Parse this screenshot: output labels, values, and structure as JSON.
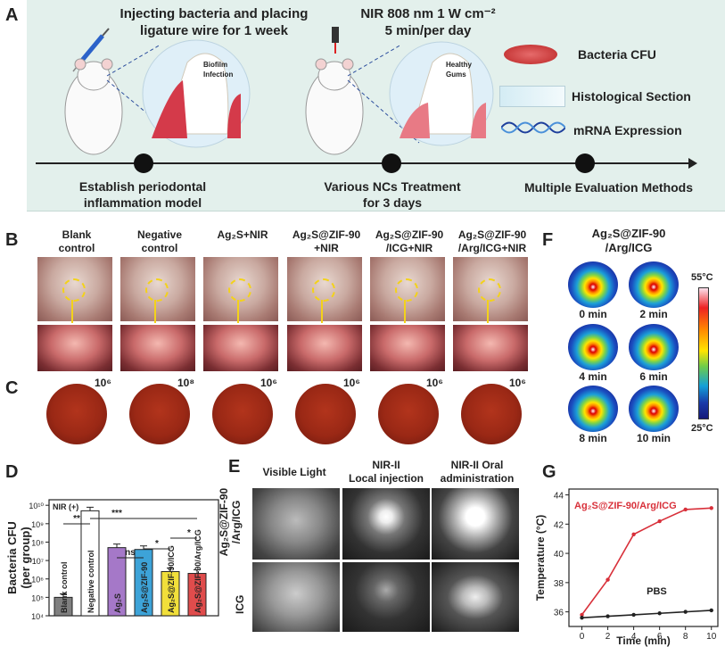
{
  "panelA": {
    "label": "A",
    "step1_title1": "Injecting bacteria and placing",
    "step1_title2": "ligature wire for 1 week",
    "step2_title1": "NIR 808 nm 1 W cm⁻²",
    "step2_title2": "5 min/per day",
    "biofilm1": "Biofilm",
    "biofilm2": "Infection",
    "healthy1": "Healthy",
    "healthy2": "Gums",
    "legend": [
      "Bacteria CFU",
      "Histological Section",
      "mRNA Expression"
    ],
    "t1a": "Establish periodontal",
    "t1b": "inflammation model",
    "t2a": "Various NCs Treatment",
    "t2b": "for 3 days",
    "t3": "Multiple Evaluation Methods"
  },
  "panelB": {
    "label": "B",
    "groups": [
      {
        "l1": "Blank",
        "l2": "control"
      },
      {
        "l1": "Negative",
        "l2": "control"
      },
      {
        "l1": "Ag₂S+NIR",
        "l2": ""
      },
      {
        "l1": "Ag₂S@ZIF-90",
        "l2": "+NIR"
      },
      {
        "l1": "Ag₂S@ZIF-90",
        "l2": "/ICG+NIR"
      },
      {
        "l1": "Ag₂S@ZIF-90",
        "l2": "/Arg/ICG+NIR"
      }
    ]
  },
  "panelC": {
    "label": "C",
    "dilutions": [
      "10⁶",
      "10⁸",
      "10⁶",
      "10⁶",
      "10⁶",
      "10⁶"
    ]
  },
  "panelD": {
    "label": "D",
    "nir": "NIR (+)",
    "ylabel1": "Bacteria CFU",
    "ylabel2": "(per group)",
    "sig": [
      "**",
      "***",
      "ns",
      "*",
      "*"
    ],
    "yticks": [
      "10¹⁰",
      "10⁹",
      "10⁸",
      "10⁷",
      "10⁶",
      "10⁵",
      "10⁴"
    ]
  },
  "panelE": {
    "label": "E",
    "cols": [
      "Visible Light",
      "NIR-II",
      "Local injection",
      "NIR-II Oral",
      "administration"
    ],
    "row1a": "Ag₂S@ZIF-90",
    "row1b": "/Arg/ICG",
    "row2": "ICG"
  },
  "panelF": {
    "label": "F",
    "title1": "Ag₂S@ZIF-90",
    "title2": "/Arg/ICG",
    "times": [
      "0 min",
      "2 min",
      "4 min",
      "6 min",
      "8 min",
      "10 min"
    ],
    "scale_max": "55°C",
    "scale_min": "25°C"
  },
  "panelG": {
    "label": "G"
  },
  "chart_data": {
    "type": "bar",
    "categories": [
      "Blank control",
      "Negative control",
      "Ag₂S",
      "Ag₂S@ZIF-90",
      "Ag₂S@ZIF-90/ICG",
      "Ag₂S@ZIF-90/Arg/ICG"
    ],
    "values": [
      5.0,
      9.7,
      7.7,
      7.6,
      6.4,
      6.3
    ],
    "ylim": [
      4,
      10.3
    ],
    "log": true,
    "colors": [
      "#7f7f7f",
      "#ffffff",
      "#a578c8",
      "#3da3d8",
      "#f1df3a",
      "#e04c4c"
    ]
  },
  "chart_data_G": {
    "type": "line",
    "xlabel": "Time (min)",
    "ylabel": "Temperature (°C)",
    "xlim": [
      -1,
      10.5
    ],
    "ylim": [
      35,
      44.4
    ],
    "xticks": [
      "0",
      "2",
      "4",
      "6",
      "8",
      "10"
    ],
    "yticks": [
      "36",
      "38",
      "40",
      "42",
      "44"
    ],
    "series": [
      {
        "name": "Ag₂S@ZIF-90/Arg/ICG",
        "color": "#d8303a",
        "x": [
          0,
          2,
          4,
          6,
          8,
          10
        ],
        "y": [
          35.8,
          38.2,
          41.3,
          42.2,
          43.0,
          43.1
        ]
      },
      {
        "name": "PBS",
        "color": "#222222",
        "x": [
          0,
          2,
          4,
          6,
          8,
          10
        ],
        "y": [
          35.6,
          35.7,
          35.8,
          35.9,
          36.0,
          36.1
        ]
      }
    ]
  }
}
